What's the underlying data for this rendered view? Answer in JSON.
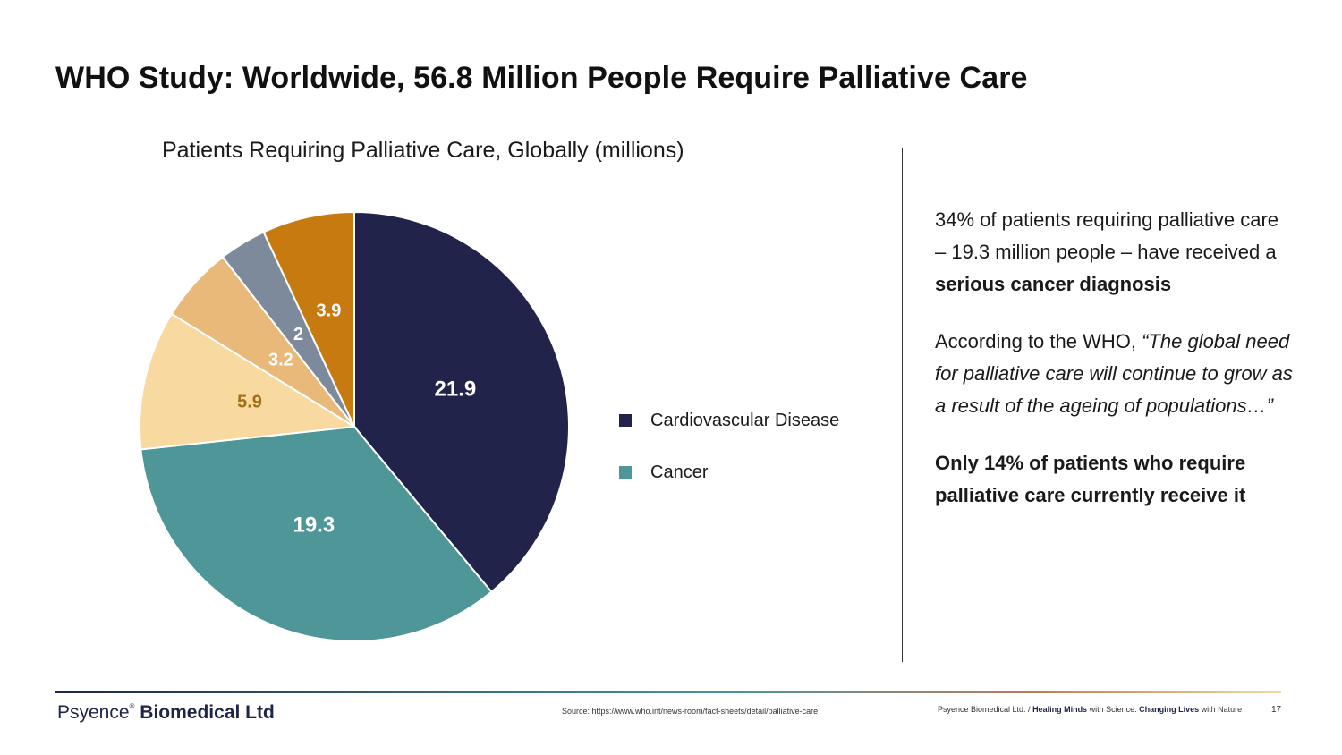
{
  "slide": {
    "title": "WHO Study: Worldwide, 56.8 Million People Require Palliative Care",
    "page_number": "17"
  },
  "colors": {
    "cardiovascular": "#22234a",
    "cancer": "#4e9698",
    "slice3": "#f8d9a0",
    "slice4": "#e9b97a",
    "slice5": "#7d8a9c",
    "slice6": "#c77a10"
  },
  "chart_data": {
    "type": "pie",
    "title": "Patients Requiring Palliative Care, Globally (millions)",
    "start_angle_deg": 0,
    "direction": "clockwise",
    "slices": [
      {
        "label": "Cardiovascular Disease",
        "value": 21.9,
        "color": "#22234a",
        "label_color": "#ffffff",
        "in_legend": true
      },
      {
        "label": "Cancer",
        "value": 19.3,
        "color": "#4e9698",
        "label_color": "#ffffff",
        "in_legend": true
      },
      {
        "label": "",
        "value": 5.9,
        "color": "#f8d9a0",
        "label_color": "#a26f16",
        "in_legend": false
      },
      {
        "label": "",
        "value": 3.2,
        "color": "#e9b97a",
        "label_color": "#ffffff",
        "in_legend": false
      },
      {
        "label": "",
        "value": 2,
        "color": "#7d8a9c",
        "label_color": "#ffffff",
        "in_legend": false
      },
      {
        "label": "",
        "value": 3.9,
        "color": "#c77a10",
        "label_color": "#ffffff",
        "in_legend": false
      }
    ],
    "legend": [
      "Cardiovascular Disease",
      "Cancer"
    ],
    "legend_position": "right"
  },
  "notes": {
    "p1_text": "34% of patients requiring palliative care – 19.3 million people – have received a ",
    "p1_bold": "serious cancer diagnosis",
    "p2_text": "According to the WHO, ",
    "p2_quote": "“The global need for palliative care will continue to grow as a result of the ageing of populations…”",
    "p3_bold": "Only 14% of patients who require palliative care currently receive it"
  },
  "footer": {
    "logo_light": "Psyence",
    "logo_mark": "®",
    "logo_bold": "Biomedical Ltd",
    "source": "Source: https://www.who.int/news-room/fact-sheets/detail/palliative-care",
    "tagline_1": "Psyence Biomedical Ltd. / ",
    "tagline_2": "Healing Minds",
    "tagline_3": " with Science. ",
    "tagline_4": "Changing Lives",
    "tagline_5": " with Nature"
  }
}
